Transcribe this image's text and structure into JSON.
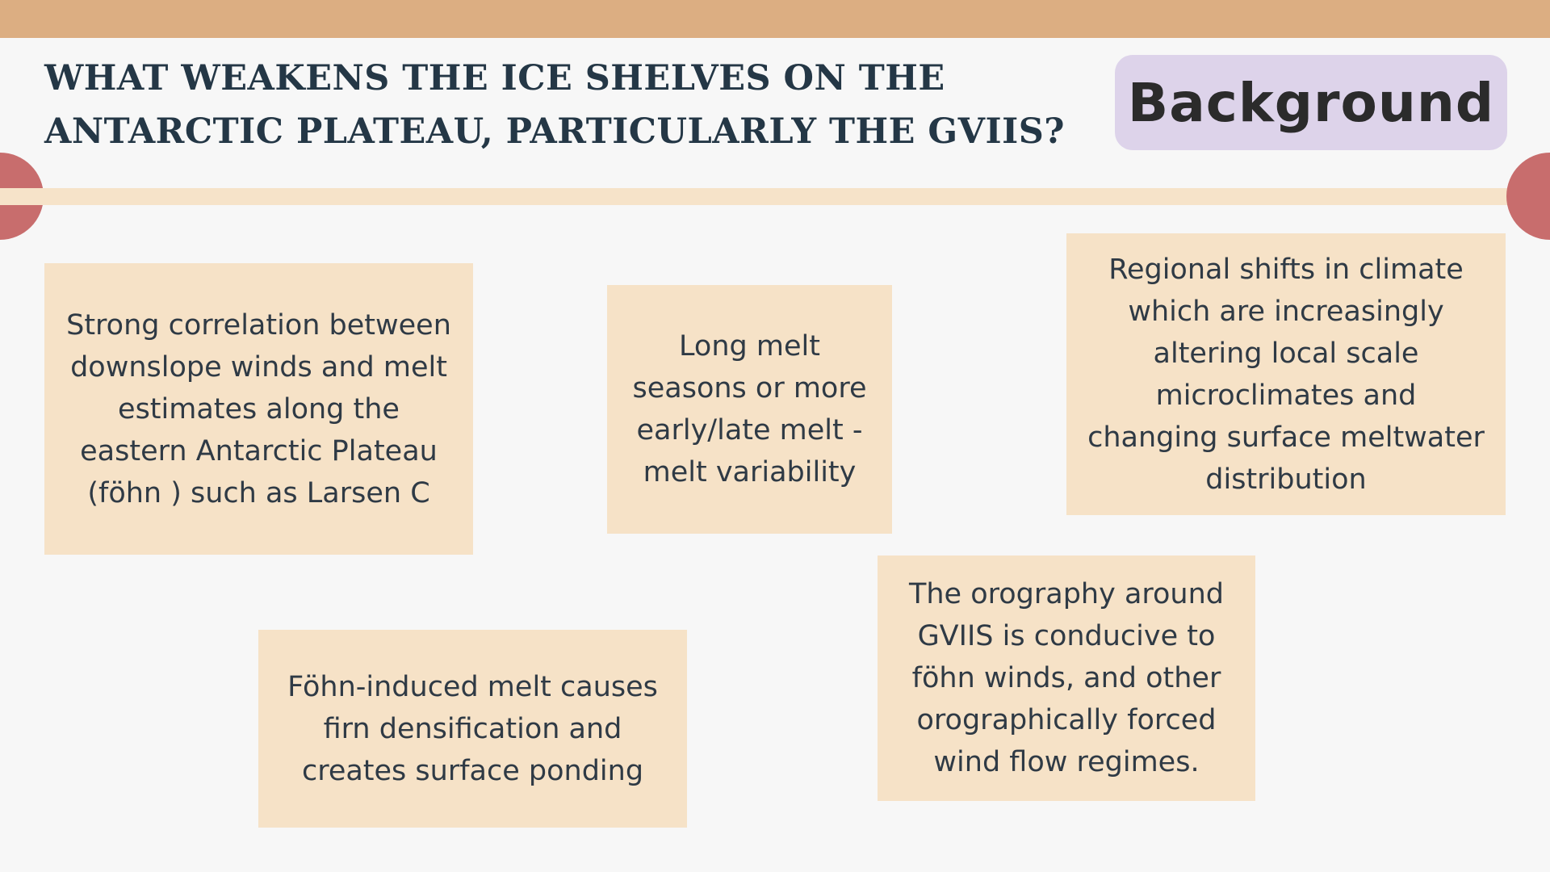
{
  "slide": {
    "title": "WHAT WEAKENS THE ICE SHELVES ON THE ANTARCTIC PLATEAU, PARTICULARLY THE GVIIS?",
    "badge_label": "Background",
    "colors": {
      "top_bar": "#dcae82",
      "divider": "#f6e3c9",
      "dots": "#c86d6d",
      "badge": "#ddd3ea",
      "cards": "#f6e2c7",
      "title_text": "#243746"
    }
  },
  "cards": [
    {
      "text": "Strong correlation between downslope winds and melt estimates along the eastern Antarctic Plateau (föhn ) such as Larsen C"
    },
    {
      "text": "Long melt seasons or more early/late melt - melt variability"
    },
    {
      "text": "Regional shifts in climate which are increasingly altering local scale microclimates and changing surface meltwater distribution"
    },
    {
      "text": "Föhn-induced melt causes firn densification and creates surface ponding"
    },
    {
      "text": "The orography around GVIIS is conducive to föhn winds, and other orographically forced wind flow regimes."
    }
  ]
}
